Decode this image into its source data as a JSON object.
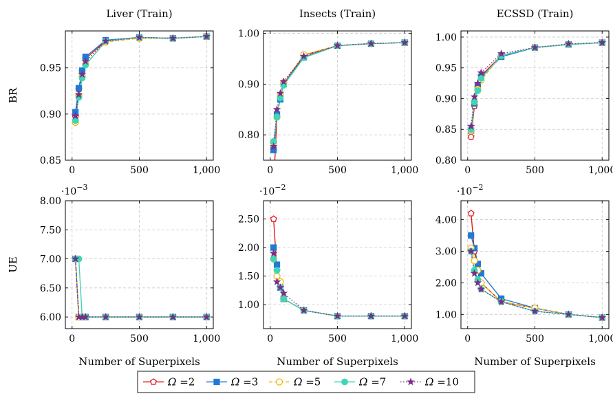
{
  "chart_data": [
    {
      "type": "line",
      "title": "Liver (Train)",
      "xlabel": "",
      "ylabel": "BR",
      "xlim": [
        -50,
        1050
      ],
      "ylim": [
        0.85,
        0.99
      ],
      "xticks": [
        0,
        500,
        1000
      ],
      "xtick_labels": [
        "0",
        "500",
        "1,000"
      ],
      "yticks": [
        0.85,
        0.9,
        0.95
      ],
      "ytick_labels": [
        "0.85",
        "0.90",
        "0.95"
      ],
      "grid": true,
      "x": [
        25,
        50,
        75,
        100,
        250,
        500,
        750,
        1000
      ],
      "series": [
        {
          "name": "Ω=2",
          "values": [
            0.897,
            0.927,
            0.946,
            0.96,
            0.979,
            0.983,
            0.982,
            0.984
          ]
        },
        {
          "name": "Ω=3",
          "values": [
            0.902,
            0.928,
            0.947,
            0.962,
            0.98,
            0.983,
            0.982,
            0.984
          ]
        },
        {
          "name": "Ω=5",
          "values": [
            0.891,
            0.92,
            0.941,
            0.954,
            0.978,
            0.982,
            0.982,
            0.984
          ]
        },
        {
          "name": "Ω=7",
          "values": [
            0.893,
            0.918,
            0.939,
            0.953,
            0.979,
            0.983,
            0.982,
            0.984
          ]
        },
        {
          "name": "Ω=10",
          "values": [
            0.898,
            0.921,
            0.943,
            0.957,
            0.979,
            0.983,
            0.982,
            0.984
          ]
        }
      ]
    },
    {
      "type": "line",
      "title": "Insects (Train)",
      "xlabel": "",
      "ylabel": "",
      "xlim": [
        -50,
        1050
      ],
      "ylim": [
        0.75,
        1.005
      ],
      "xticks": [
        0,
        500,
        1000
      ],
      "xtick_labels": [
        "0",
        "500",
        "1,000"
      ],
      "yticks": [
        0.8,
        0.9,
        1.0
      ],
      "ytick_labels": [
        "0.80",
        "0.90",
        "1.00"
      ],
      "grid": true,
      "x": [
        25,
        50,
        75,
        100,
        250,
        500,
        750,
        1000
      ],
      "series": [
        {
          "name": "Ω=2",
          "values": [
            0.7,
            0.835,
            0.875,
            0.9,
            0.957,
            0.976,
            0.98,
            0.982
          ]
        },
        {
          "name": "Ω=3",
          "values": [
            0.77,
            0.84,
            0.87,
            0.9,
            0.953,
            0.976,
            0.98,
            0.982
          ]
        },
        {
          "name": "Ω=5",
          "values": [
            0.785,
            0.835,
            0.878,
            0.903,
            0.958,
            0.976,
            0.98,
            0.982
          ]
        },
        {
          "name": "Ω=7",
          "values": [
            0.787,
            0.835,
            0.873,
            0.898,
            0.952,
            0.976,
            0.98,
            0.982
          ]
        },
        {
          "name": "Ω=10",
          "values": [
            0.777,
            0.85,
            0.882,
            0.905,
            0.955,
            0.976,
            0.98,
            0.982
          ]
        }
      ]
    },
    {
      "type": "line",
      "title": "ECSSD (Train)",
      "xlabel": "",
      "ylabel": "",
      "xlim": [
        -50,
        1050
      ],
      "ylim": [
        0.8,
        1.01
      ],
      "xticks": [
        0,
        500,
        1000
      ],
      "xtick_labels": [
        "0",
        "500",
        "1,000"
      ],
      "yticks": [
        0.8,
        0.85,
        0.9,
        0.95,
        1.0
      ],
      "ytick_labels": [
        "0.80",
        "0.85",
        "0.90",
        "0.95",
        "1.00"
      ],
      "grid": true,
      "x": [
        25,
        50,
        75,
        100,
        250,
        500,
        750,
        1000
      ],
      "series": [
        {
          "name": "Ω=2",
          "values": [
            0.838,
            0.888,
            0.918,
            0.937,
            0.97,
            0.983,
            0.988,
            0.991
          ]
        },
        {
          "name": "Ω=3",
          "values": [
            0.848,
            0.892,
            0.92,
            0.935,
            0.968,
            0.983,
            0.988,
            0.991
          ]
        },
        {
          "name": "Ω=5",
          "values": [
            0.848,
            0.895,
            0.915,
            0.93,
            0.97,
            0.983,
            0.988,
            0.991
          ]
        },
        {
          "name": "Ω=7",
          "values": [
            0.85,
            0.895,
            0.913,
            0.933,
            0.97,
            0.983,
            0.988,
            0.991
          ]
        },
        {
          "name": "Ω=10",
          "values": [
            0.855,
            0.903,
            0.925,
            0.942,
            0.973,
            0.983,
            0.989,
            0.991
          ]
        }
      ]
    },
    {
      "type": "line",
      "title": "",
      "xlabel": "Number of Superpixels",
      "ylabel": "UE",
      "scale_label_base": "·10",
      "scale_label_exp": "−3",
      "xlim": [
        -50,
        1050
      ],
      "ylim": [
        5.8,
        8.0
      ],
      "xticks": [
        0,
        500,
        1000
      ],
      "xtick_labels": [
        "0",
        "500",
        "1,000"
      ],
      "yticks": [
        6.0,
        6.5,
        7.0,
        7.5,
        8.0
      ],
      "ytick_labels": [
        "6.00",
        "6.50",
        "7.00",
        "7.50",
        "8.00"
      ],
      "grid": true,
      "x": [
        25,
        50,
        75,
        100,
        250,
        500,
        750,
        1000
      ],
      "series": [
        {
          "name": "Ω=2",
          "values": [
            7.0,
            6.0,
            6.0,
            6.0,
            6.0,
            6.0,
            6.0,
            6.0
          ]
        },
        {
          "name": "Ω=3",
          "values": [
            7.0,
            6.0,
            6.0,
            6.0,
            6.0,
            6.0,
            6.0,
            6.0
          ]
        },
        {
          "name": "Ω=5",
          "values": [
            7.0,
            6.0,
            6.0,
            6.0,
            6.0,
            6.0,
            6.0,
            6.0
          ]
        },
        {
          "name": "Ω=7",
          "values": [
            7.0,
            7.0,
            6.0,
            6.0,
            6.0,
            6.0,
            6.0,
            6.0
          ]
        },
        {
          "name": "Ω=10",
          "values": [
            7.0,
            6.0,
            6.0,
            6.0,
            6.0,
            6.0,
            6.0,
            6.0
          ]
        }
      ]
    },
    {
      "type": "line",
      "title": "",
      "xlabel": "Number of Superpixels",
      "ylabel": "",
      "scale_label_base": "·10",
      "scale_label_exp": "−2",
      "xlim": [
        -50,
        1050
      ],
      "ylim": [
        0.58,
        2.82
      ],
      "xticks": [
        0,
        500,
        1000
      ],
      "xtick_labels": [
        "0",
        "500",
        "1,000"
      ],
      "yticks": [
        1.0,
        1.5,
        2.0,
        2.5
      ],
      "ytick_labels": [
        "1.00",
        "1.50",
        "2.00",
        "2.50"
      ],
      "grid": true,
      "x": [
        25,
        50,
        75,
        100,
        250,
        500,
        750,
        1000
      ],
      "series": [
        {
          "name": "Ω=2",
          "values": [
            2.5,
            1.6,
            1.3,
            1.1,
            0.9,
            0.8,
            0.8,
            0.8
          ]
        },
        {
          "name": "Ω=3",
          "values": [
            2.0,
            1.7,
            1.3,
            1.1,
            0.9,
            0.8,
            0.8,
            0.8
          ]
        },
        {
          "name": "Ω=5",
          "values": [
            1.8,
            1.5,
            1.4,
            1.1,
            0.9,
            0.8,
            0.8,
            0.8
          ]
        },
        {
          "name": "Ω=7",
          "values": [
            1.8,
            1.6,
            1.3,
            1.1,
            0.9,
            0.8,
            0.8,
            0.8
          ]
        },
        {
          "name": "Ω=10",
          "values": [
            1.9,
            1.4,
            1.3,
            1.2,
            0.9,
            0.8,
            0.8,
            0.8
          ]
        }
      ]
    },
    {
      "type": "line",
      "title": "",
      "xlabel": "Number of Superpixels",
      "ylabel": "",
      "scale_label_base": "·10",
      "scale_label_exp": "−2",
      "xlim": [
        -50,
        1050
      ],
      "ylim": [
        0.55,
        4.6
      ],
      "xticks": [
        0,
        500,
        1000
      ],
      "xtick_labels": [
        "0",
        "500",
        "1,000"
      ],
      "yticks": [
        1.0,
        2.0,
        3.0,
        4.0
      ],
      "ytick_labels": [
        "1.00",
        "2.00",
        "3.00",
        "4.00"
      ],
      "grid": true,
      "x": [
        25,
        50,
        75,
        100,
        250,
        500,
        750,
        1000
      ],
      "series": [
        {
          "name": "Ω=2",
          "values": [
            4.2,
            3.0,
            2.4,
            2.0,
            1.4,
            1.2,
            1.0,
            0.9
          ]
        },
        {
          "name": "Ω=3",
          "values": [
            3.5,
            3.1,
            2.6,
            2.3,
            1.5,
            1.2,
            1.0,
            0.9
          ]
        },
        {
          "name": "Ω=5",
          "values": [
            3.1,
            2.7,
            2.4,
            2.0,
            1.4,
            1.2,
            1.0,
            0.9
          ]
        },
        {
          "name": "Ω=7",
          "values": [
            3.0,
            2.4,
            2.1,
            1.8,
            1.4,
            1.1,
            1.0,
            0.9
          ]
        },
        {
          "name": "Ω=10",
          "values": [
            3.0,
            2.3,
            2.0,
            1.8,
            1.4,
            1.1,
            1.0,
            0.9
          ]
        }
      ]
    }
  ],
  "legend": {
    "placement": "bottom-center",
    "entries": [
      {
        "symbol": "Ω",
        "text": "=2",
        "color": "#e41a1c",
        "marker": "pentagon-open",
        "dash": "solid"
      },
      {
        "symbol": "Ω",
        "text": "=3",
        "color": "#1f7ad6",
        "marker": "square-filled",
        "dash": "solid"
      },
      {
        "symbol": "Ω",
        "text": "=5",
        "color": "#f2b705",
        "marker": "circle-open",
        "dash": "dashed"
      },
      {
        "symbol": "Ω",
        "text": "=7",
        "color": "#3fd6b5",
        "marker": "circle-filled",
        "dash": "solid"
      },
      {
        "symbol": "Ω",
        "text": "=10",
        "color": "#7a2d8c",
        "marker": "star",
        "dash": "dotted"
      }
    ]
  }
}
